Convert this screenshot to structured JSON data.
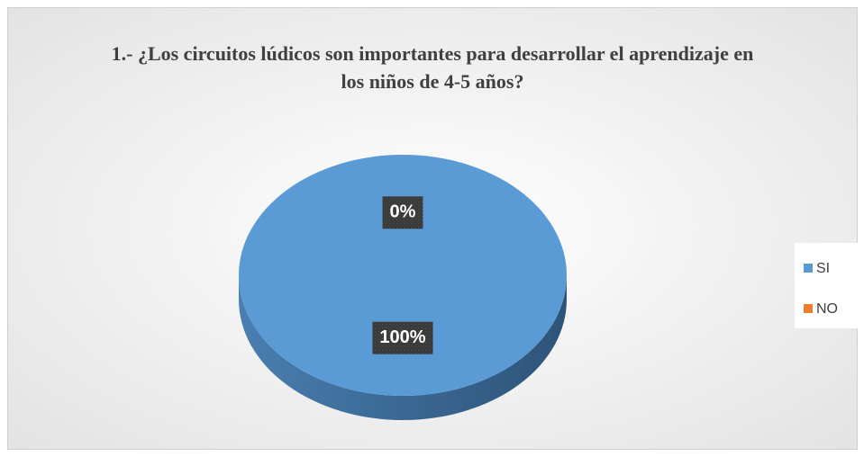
{
  "chart_data": {
    "type": "pie",
    "title": "1.- ¿Los circuitos lúdicos son importantes para desarrollar el aprendizaje en los niños de 4-5 años?",
    "categories": [
      "SI",
      "NO"
    ],
    "values": [
      100,
      0
    ],
    "value_labels": [
      "100%",
      "0%"
    ],
    "colors": [
      "#5b9bd5",
      "#ed7d31"
    ],
    "legend": "right"
  }
}
